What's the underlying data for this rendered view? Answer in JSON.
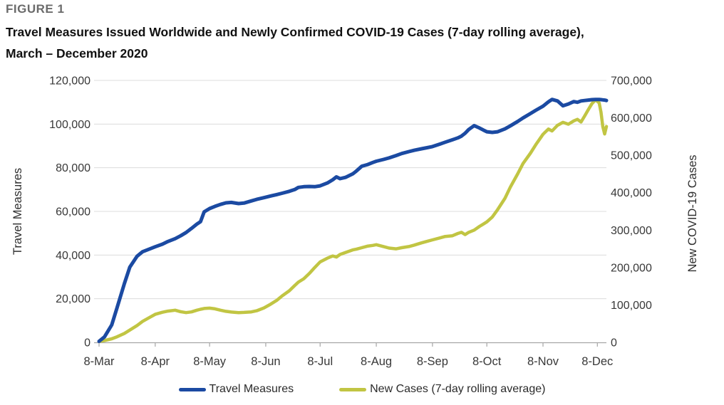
{
  "figure": {
    "label": "FIGURE 1",
    "title_line1": "Travel Measures Issued Worldwide and Newly Confirmed COVID-19 Cases (7-day rolling average),",
    "title_line2": "March – December 2020"
  },
  "colors": {
    "travel": "#1b4aa2",
    "cases": "#c1c543",
    "grid": "#dcdcdc",
    "axis_line": "#a6a6a6",
    "tick_text": "#383838",
    "figure_label": "#6b6b6b"
  },
  "legend": {
    "items": [
      {
        "label": "Travel Measures",
        "color_key": "travel"
      },
      {
        "label": "New Cases (7-day rolling average)",
        "color_key": "cases"
      }
    ]
  },
  "axes": {
    "left": {
      "title": "Travel Measures",
      "ticks": [
        {
          "value": 0,
          "label": "0"
        },
        {
          "value": 20000,
          "label": "20,000"
        },
        {
          "value": 40000,
          "label": "40,000"
        },
        {
          "value": 60000,
          "label": "60,000"
        },
        {
          "value": 80000,
          "label": "80,000"
        },
        {
          "value": 100000,
          "label": "100,000"
        },
        {
          "value": 120000,
          "label": "120,000"
        }
      ]
    },
    "right": {
      "title": "New COVID-19 Cases",
      "ticks": [
        {
          "value": 0,
          "label": "0"
        },
        {
          "value": 100000,
          "label": "100,000"
        },
        {
          "value": 200000,
          "label": "200,000"
        },
        {
          "value": 300000,
          "label": "300,000"
        },
        {
          "value": 400000,
          "label": "400,000"
        },
        {
          "value": 500000,
          "label": "500,000"
        },
        {
          "value": 600000,
          "label": "600,000"
        },
        {
          "value": 700000,
          "label": "700,000"
        }
      ]
    },
    "x": {
      "ticks": [
        {
          "day": 0,
          "label": "8-Mar"
        },
        {
          "day": 31,
          "label": "8-Apr"
        },
        {
          "day": 61,
          "label": "8-May"
        },
        {
          "day": 92,
          "label": "8-Jun"
        },
        {
          "day": 122,
          "label": "8-Jul"
        },
        {
          "day": 153,
          "label": "8-Aug"
        },
        {
          "day": 184,
          "label": "8-Sep"
        },
        {
          "day": 214,
          "label": "8-Oct"
        },
        {
          "day": 245,
          "label": "8-Nov"
        },
        {
          "day": 275,
          "label": "8-Dec"
        }
      ]
    }
  },
  "chart_data": {
    "type": "line",
    "title": "Travel Measures Issued Worldwide and Newly Confirmed COVID-19 Cases (7-day rolling average), March – December 2020",
    "x_unit": "days since 8-Mar-2020",
    "x_domain": [
      0,
      280
    ],
    "ylim_left": [
      0,
      120000
    ],
    "ylim_right": [
      0,
      700000
    ],
    "grid": "horizontal",
    "legend_position": "bottom",
    "x": [
      0,
      3,
      7,
      10,
      14,
      17,
      21,
      24,
      28,
      31,
      35,
      38,
      42,
      45,
      48,
      51,
      54,
      56,
      58,
      61,
      64,
      67,
      70,
      73,
      77,
      80,
      84,
      87,
      91,
      94,
      98,
      101,
      105,
      108,
      110,
      113,
      116,
      119,
      122,
      126,
      129,
      131,
      133,
      136,
      140,
      142,
      145,
      148,
      151,
      153,
      157,
      160,
      164,
      167,
      171,
      174,
      178,
      181,
      184,
      188,
      191,
      195,
      198,
      200,
      202,
      204,
      207,
      210,
      212,
      214,
      217,
      220,
      224,
      227,
      231,
      234,
      238,
      241,
      245,
      248,
      250,
      253,
      256,
      259,
      262,
      264,
      266,
      268,
      270,
      272,
      274,
      276,
      277,
      278,
      279,
      280
    ],
    "series": [
      {
        "name": "Travel Measures",
        "axis": "left",
        "color": "#1b4aa2",
        "stroke_width": 5,
        "values": [
          500,
          2500,
          8000,
          16000,
          27000,
          34500,
          39500,
          41500,
          42800,
          43800,
          45000,
          46200,
          47500,
          48800,
          50300,
          52200,
          54200,
          55300,
          59800,
          61300,
          62300,
          63200,
          63900,
          64100,
          63600,
          63800,
          64800,
          65500,
          66300,
          66900,
          67700,
          68300,
          69200,
          70000,
          71000,
          71300,
          71400,
          71300,
          71700,
          73000,
          74500,
          75800,
          75000,
          75600,
          77200,
          78500,
          80700,
          81400,
          82400,
          83000,
          83800,
          84500,
          85600,
          86500,
          87400,
          88000,
          88700,
          89200,
          89700,
          90800,
          91700,
          92800,
          93700,
          94500,
          95800,
          97500,
          99300,
          98200,
          97300,
          96500,
          96200,
          96500,
          97800,
          99200,
          101200,
          102800,
          104800,
          106300,
          108200,
          110200,
          111300,
          110600,
          108400,
          109200,
          110300,
          110000,
          110600,
          110800,
          111000,
          111200,
          111300,
          111300,
          111200,
          111100,
          111000,
          110800
        ]
      },
      {
        "name": "New Cases (7-day rolling average)",
        "axis": "right",
        "color": "#c1c543",
        "stroke_width": 4.5,
        "values": [
          2500,
          5000,
          9500,
          15000,
          24000,
          33000,
          45000,
          56000,
          67000,
          75000,
          80500,
          83500,
          86000,
          82000,
          79500,
          81500,
          86000,
          88500,
          90500,
          91500,
          89500,
          86000,
          83000,
          81000,
          79500,
          80000,
          81500,
          84500,
          92000,
          100000,
          112000,
          124000,
          138000,
          152000,
          161000,
          170000,
          184000,
          200000,
          215000,
          225000,
          231000,
          228000,
          235000,
          240000,
          247000,
          249000,
          253000,
          257000,
          259000,
          261000,
          256000,
          252000,
          250000,
          253000,
          256000,
          260000,
          266000,
          270000,
          274000,
          279000,
          283000,
          285000,
          291000,
          294000,
          288000,
          294000,
          300000,
          310000,
          316000,
          322000,
          335000,
          355000,
          385000,
          415000,
          450000,
          478000,
          505000,
          528000,
          556000,
          570000,
          565000,
          580000,
          588000,
          583000,
          592000,
          596000,
          589000,
          605000,
          622000,
          638000,
          648000,
          640000,
          615000,
          577000,
          557000,
          577000
        ]
      }
    ]
  }
}
